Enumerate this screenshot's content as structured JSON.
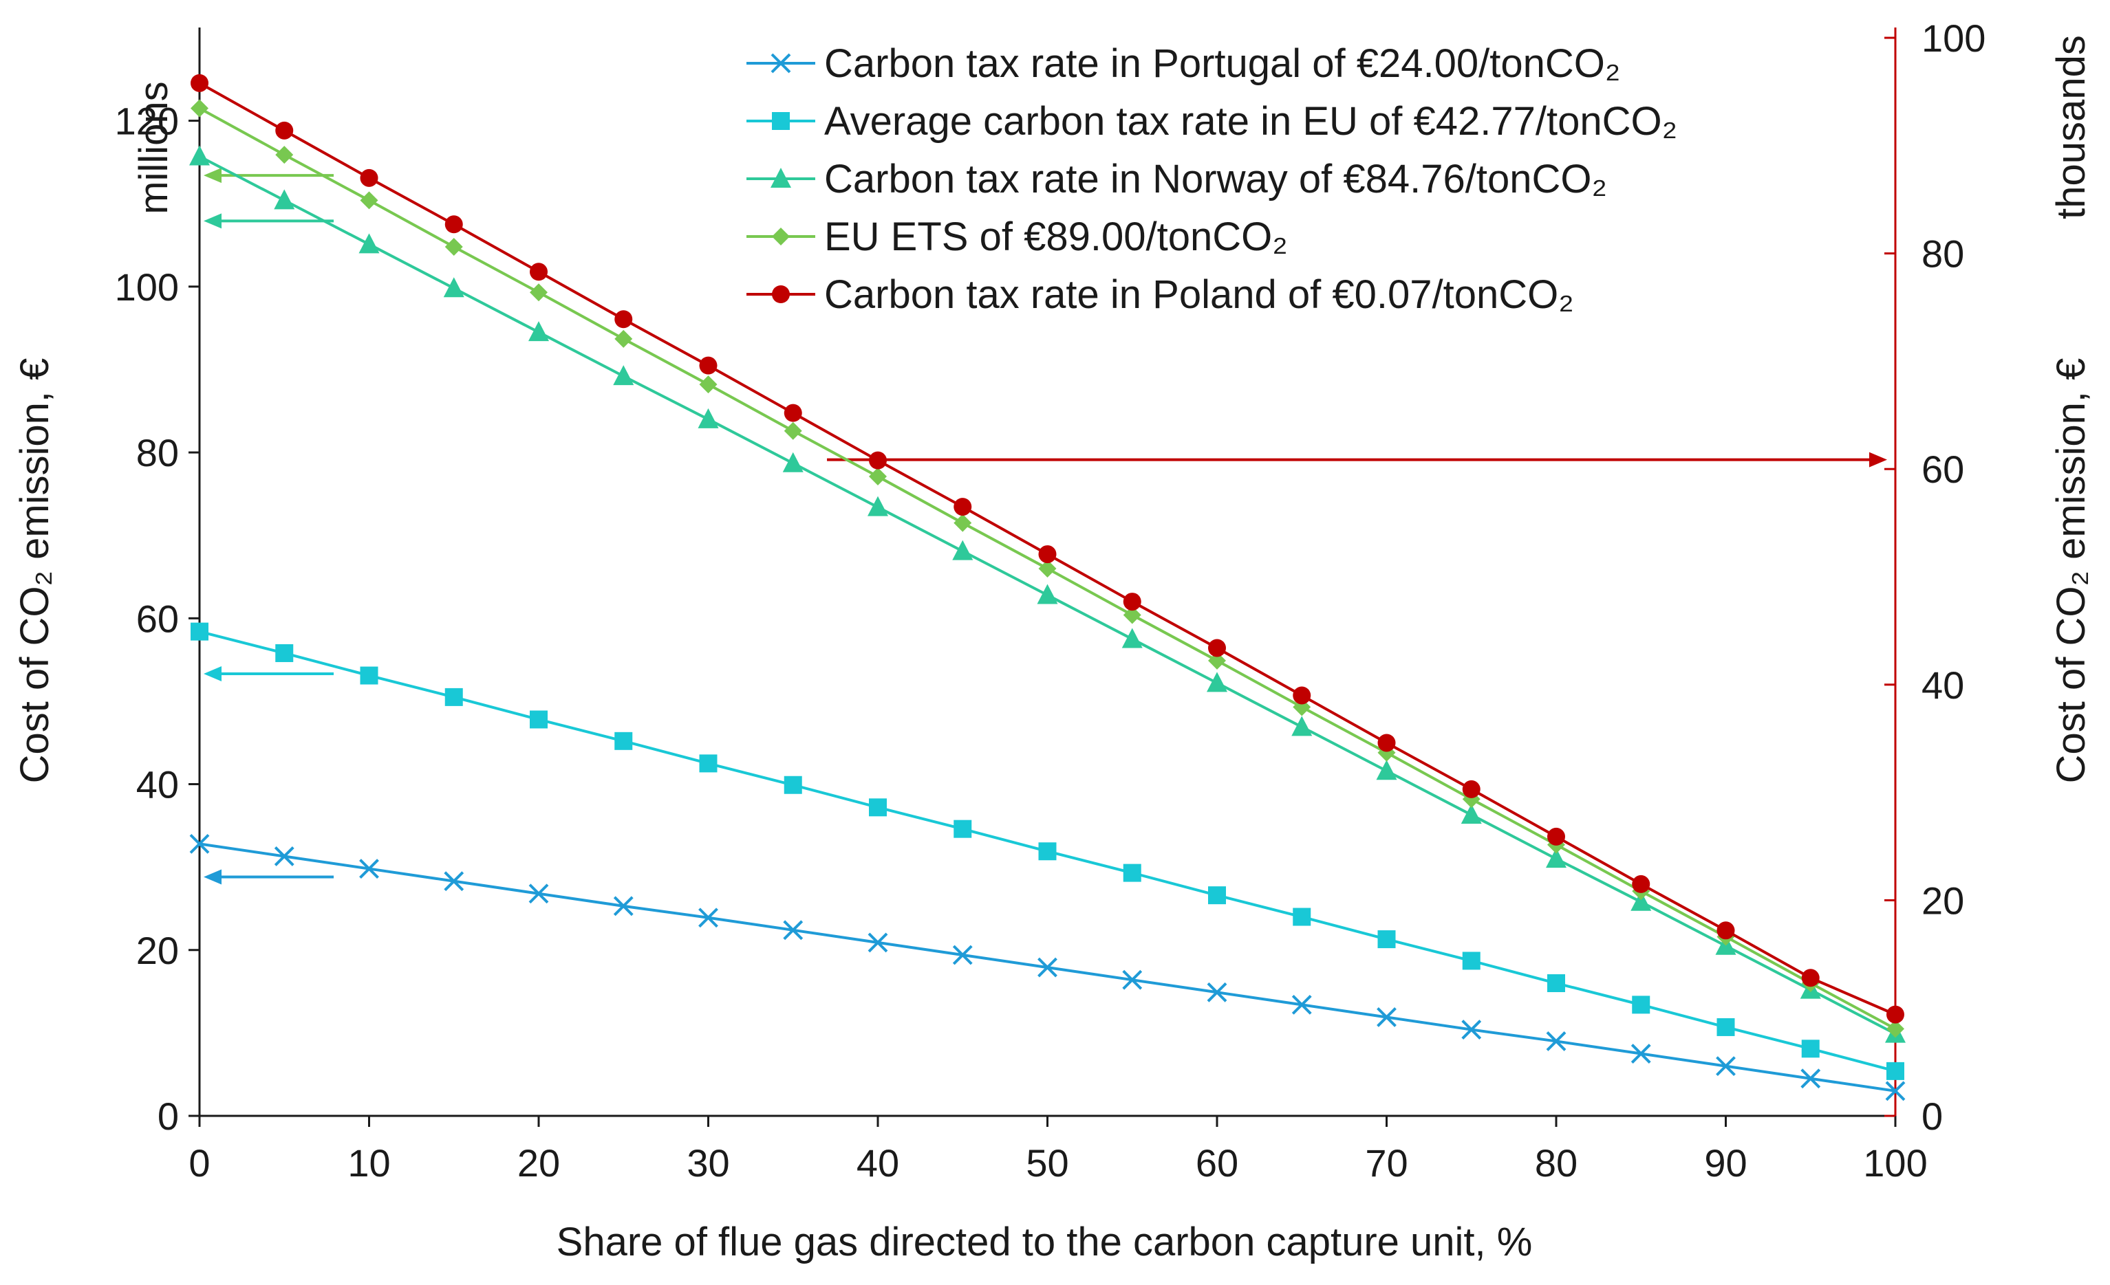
{
  "chart_data": {
    "type": "line",
    "xlabel": "Share of flue gas directed to the carbon capture unit, %",
    "ylabel_left": "Cost of CO₂ emission, €",
    "ylabel_left_unit": "millions",
    "ylabel_right": "Cost of CO₂ emission, €",
    "ylabel_right_unit": "thousands",
    "xlim": [
      0,
      100
    ],
    "ylim_left": [
      0,
      130
    ],
    "ylim_right": [
      0,
      100
    ],
    "x_ticks": [
      "0",
      "10",
      "20",
      "30",
      "40",
      "50",
      "60",
      "70",
      "80",
      "90",
      "100"
    ],
    "y_left_ticks": [
      "0",
      "20",
      "40",
      "60",
      "80",
      "100",
      "120"
    ],
    "y_right_ticks": [
      "0",
      "20",
      "40",
      "60",
      "80",
      "100"
    ],
    "x": [
      0,
      5,
      10,
      15,
      20,
      25,
      30,
      35,
      40,
      45,
      50,
      55,
      60,
      65,
      70,
      75,
      80,
      85,
      90,
      95,
      100
    ],
    "series": [
      {
        "name": "Carbon tax rate in Portugal of €24.00/tonCO₂",
        "axis": "left",
        "color": "#1f9bd7",
        "marker": "x",
        "values": [
          32.8,
          31.3,
          29.8,
          28.3,
          26.8,
          25.3,
          23.9,
          22.4,
          20.9,
          19.4,
          17.9,
          16.4,
          14.9,
          13.4,
          11.9,
          10.4,
          9.0,
          7.5,
          6.0,
          4.5,
          3.0
        ]
      },
      {
        "name": "Average carbon tax rate in EU of €42.77/tonCO₂",
        "axis": "left",
        "color": "#19c8d6",
        "marker": "square",
        "values": [
          58.4,
          55.8,
          53.1,
          50.5,
          47.8,
          45.2,
          42.5,
          39.9,
          37.2,
          34.6,
          31.9,
          29.3,
          26.6,
          24.0,
          21.3,
          18.7,
          16.0,
          13.4,
          10.7,
          8.1,
          5.4
        ]
      },
      {
        "name": "Carbon tax rate in Norway of €84.76/tonCO₂",
        "axis": "left",
        "color": "#2ec99a",
        "marker": "triangle",
        "values": [
          115.7,
          110.4,
          105.1,
          99.8,
          94.5,
          89.2,
          84.0,
          78.7,
          73.4,
          68.1,
          62.8,
          57.5,
          52.2,
          46.9,
          41.6,
          36.3,
          31.0,
          25.8,
          20.5,
          15.2,
          9.9
        ]
      },
      {
        "name": "EU ETS of €89.00/tonCO₂",
        "axis": "left",
        "color": "#78c850",
        "marker": "diamond",
        "values": [
          121.5,
          115.9,
          110.4,
          104.8,
          99.3,
          93.7,
          88.2,
          82.6,
          77.1,
          71.5,
          66.0,
          60.4,
          54.9,
          49.3,
          43.8,
          38.2,
          32.7,
          27.1,
          21.6,
          16.0,
          10.5
        ]
      },
      {
        "name": "Carbon tax rate in Poland of €0.07/tonCO₂",
        "axis": "right",
        "color": "#c00000",
        "marker": "circle",
        "values": [
          95.8,
          91.4,
          87.0,
          82.7,
          78.3,
          73.9,
          69.6,
          65.2,
          60.8,
          56.5,
          52.1,
          47.7,
          43.4,
          39.0,
          34.6,
          30.3,
          25.9,
          21.5,
          17.2,
          12.8,
          9.4
        ]
      }
    ],
    "axis_pointer_arrows": [
      {
        "series": "Carbon tax rate in Portugal of €24.00/tonCO₂",
        "direction": "left"
      },
      {
        "series": "Average carbon tax rate in EU of €42.77/tonCO₂",
        "direction": "left"
      },
      {
        "series": "Carbon tax rate in Norway of €84.76/tonCO₂",
        "direction": "left"
      },
      {
        "series": "EU ETS of €89.00/tonCO₂",
        "direction": "left"
      },
      {
        "series": "Carbon tax rate in Poland of €0.07/tonCO₂",
        "direction": "right"
      }
    ],
    "legend_position": "top-right",
    "grid": false
  }
}
